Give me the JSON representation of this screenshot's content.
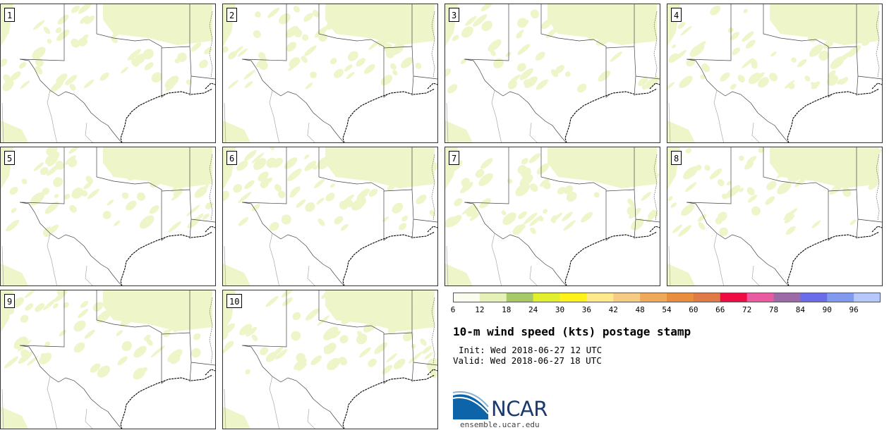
{
  "panels": [
    {
      "label": "1"
    },
    {
      "label": "2"
    },
    {
      "label": "3"
    },
    {
      "label": "4"
    },
    {
      "label": "5"
    },
    {
      "label": "6"
    },
    {
      "label": "7"
    },
    {
      "label": "8"
    },
    {
      "label": "9"
    },
    {
      "label": "10"
    }
  ],
  "colorbar": {
    "colors": [
      "#fafcf0",
      "#e6f1b7",
      "#a7c967",
      "#e2ef2e",
      "#fff21a",
      "#ffe98c",
      "#f6cb84",
      "#eea95a",
      "#e98d3f",
      "#e07a47",
      "#ef0c45",
      "#e95aa0",
      "#9c6aa6",
      "#6b6ce8",
      "#8299f0",
      "#b6c8fb"
    ],
    "ticks": [
      "6",
      "12",
      "18",
      "24",
      "30",
      "36",
      "42",
      "48",
      "54",
      "60",
      "66",
      "72",
      "78",
      "84",
      "90",
      "96"
    ]
  },
  "title": "10-m wind speed (kts) postage stamp",
  "init": "Init: Wed 2018-06-27 12 UTC",
  "valid": "Valid: Wed 2018-06-27 18 UTC",
  "logo": {
    "text": "NCAR",
    "site": "ensemble.ucar.edu"
  },
  "colors": {
    "low_wind": "#eef5c8",
    "border": "#333333"
  }
}
